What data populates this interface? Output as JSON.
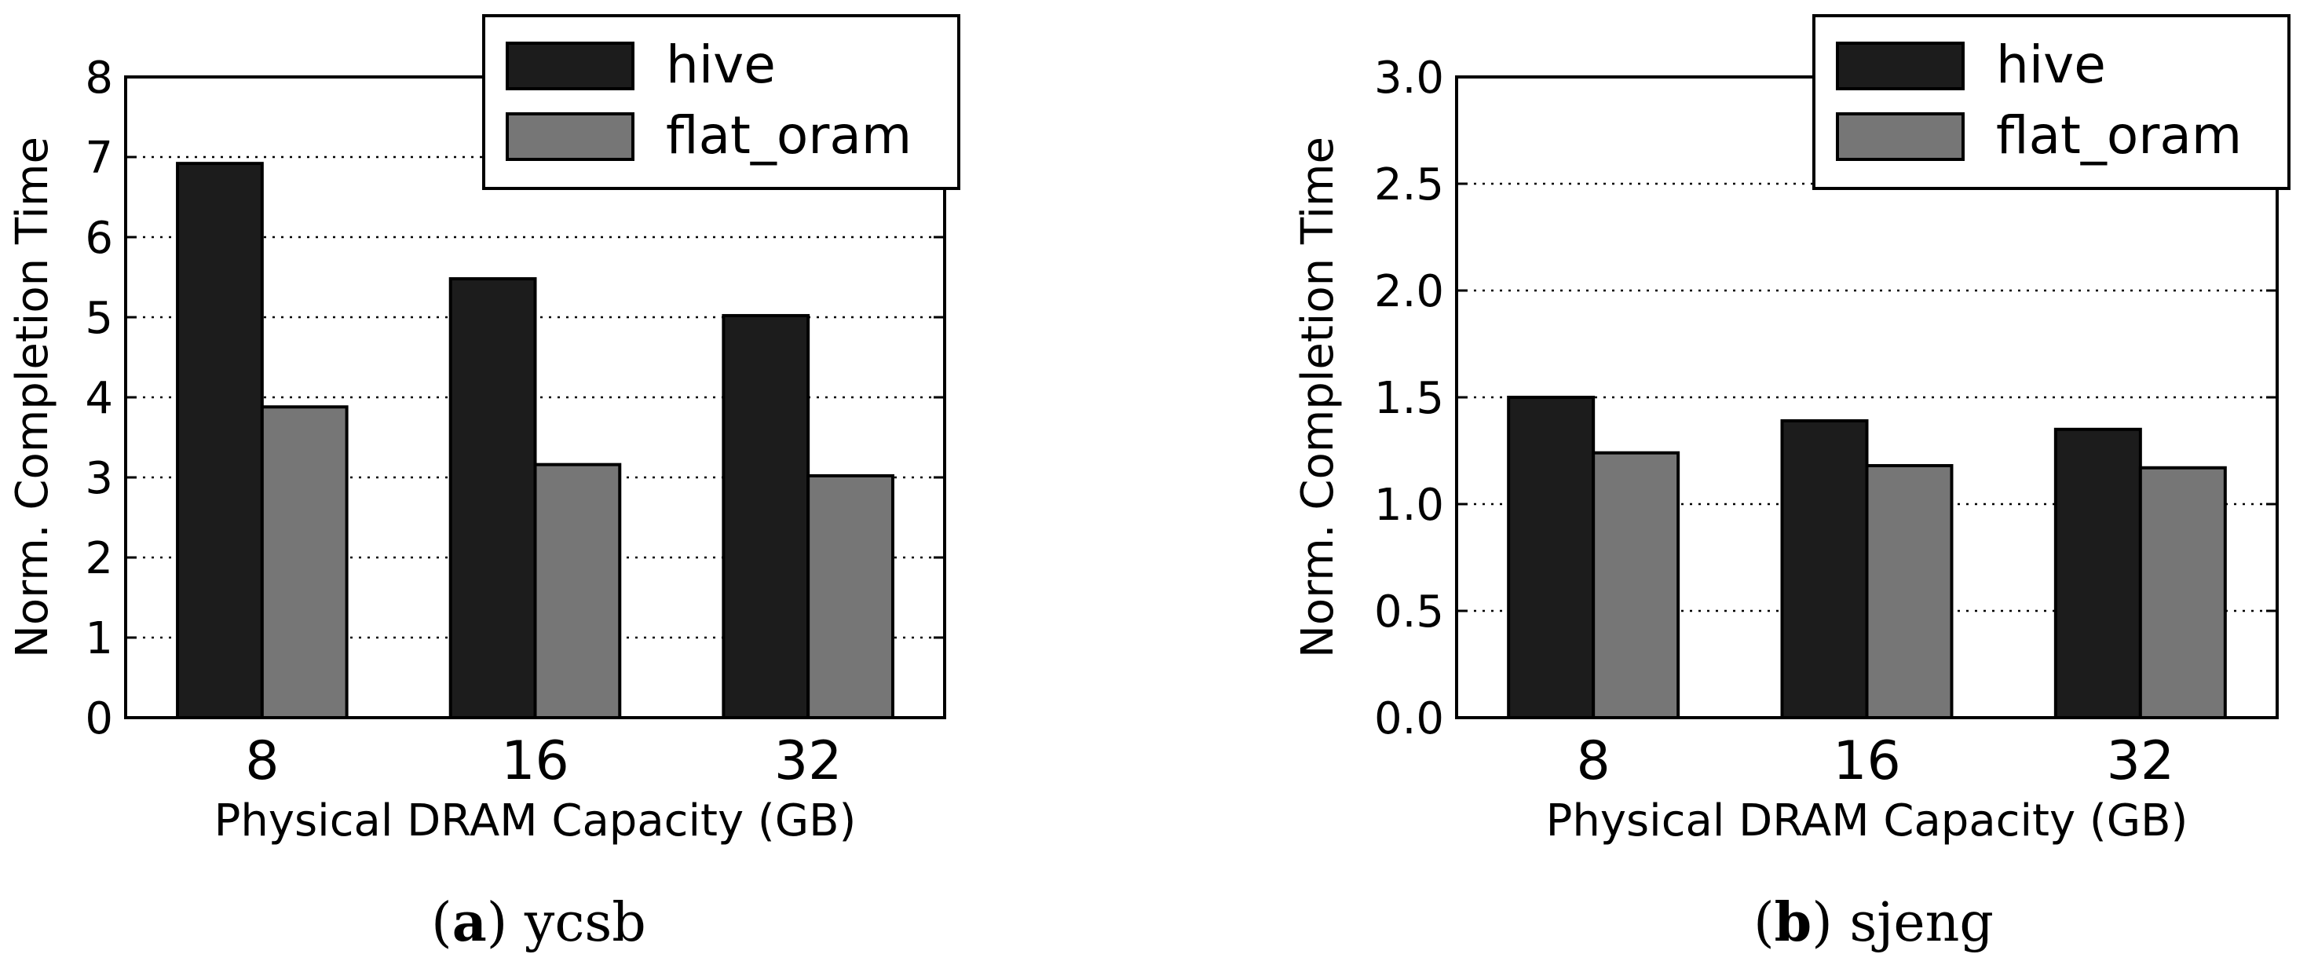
{
  "chart_data": [
    {
      "type": "bar",
      "panel_label": "a",
      "caption": "ycsb",
      "categories": [
        "8",
        "16",
        "32"
      ],
      "series": [
        {
          "name": "hive",
          "values": [
            6.92,
            5.48,
            5.02
          ],
          "color": "#1c1c1c"
        },
        {
          "name": "flat_oram",
          "values": [
            3.88,
            3.16,
            3.02
          ],
          "color": "#767676"
        }
      ],
      "xlabel": "Physical DRAM Capacity (GB)",
      "ylabel": "Norm. Completion Time",
      "ylim": [
        0,
        8
      ],
      "yticks": [
        "0",
        "1",
        "2",
        "3",
        "4",
        "5",
        "6",
        "7",
        "8"
      ],
      "grid": true,
      "legend_position": "top-right"
    },
    {
      "type": "bar",
      "panel_label": "b",
      "caption": "sjeng",
      "categories": [
        "8",
        "16",
        "32"
      ],
      "series": [
        {
          "name": "hive",
          "values": [
            1.5,
            1.39,
            1.35
          ],
          "color": "#1c1c1c"
        },
        {
          "name": "flat_oram",
          "values": [
            1.24,
            1.18,
            1.17
          ],
          "color": "#767676"
        }
      ],
      "xlabel": "Physical DRAM Capacity (GB)",
      "ylabel": "Norm. Completion Time",
      "ylim": [
        0,
        3
      ],
      "yticks": [
        "0.0",
        "0.5",
        "1.0",
        "1.5",
        "2.0",
        "2.5",
        "3.0"
      ],
      "grid": true,
      "legend_position": "top-right"
    }
  ]
}
